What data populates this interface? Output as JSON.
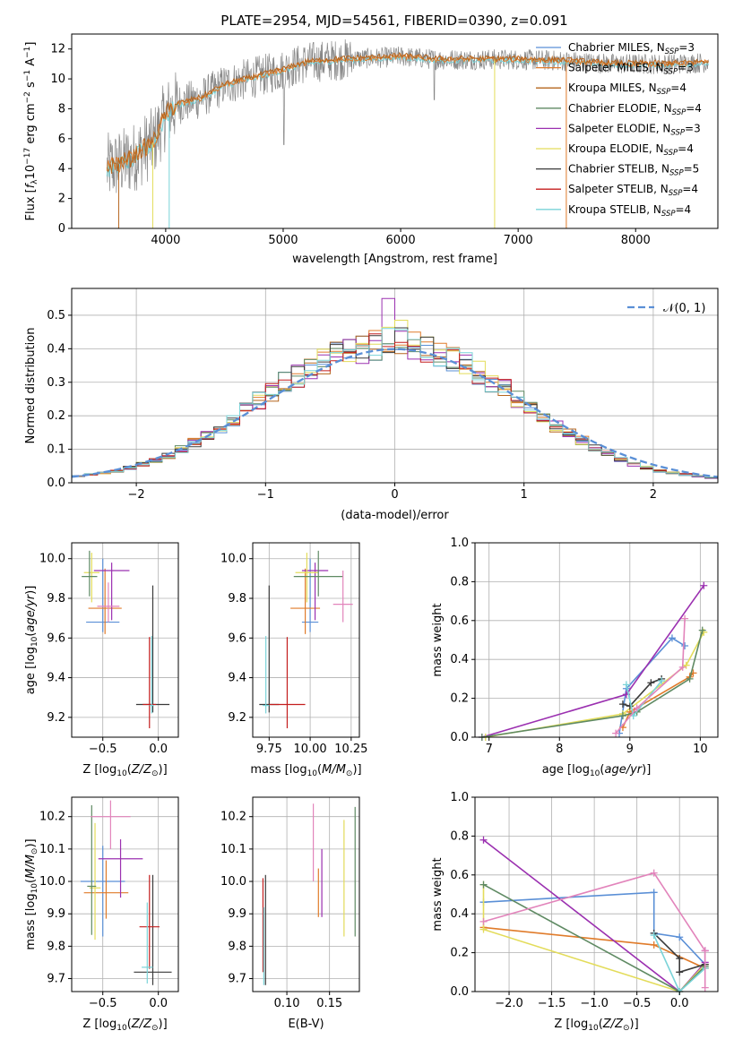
{
  "figure": {
    "title": "PLATE=2954, MJD=54561, FIBERID=0390, z=0.091"
  },
  "colors": {
    "grid": "#b0b0b0",
    "axis": "#000000",
    "model_colors": [
      "#5a8fd6",
      "#e07b2a",
      "#b5651d",
      "#5f8a63",
      "#9b30b0",
      "#e3dc5a",
      "#3a3a3a",
      "#c41e1e",
      "#7ad3d8"
    ],
    "spectrum": "#888888",
    "pink": "#e284bb",
    "lime": "#cde84a"
  },
  "chart_data": [
    {
      "id": "spectrum",
      "type": "line",
      "title": "PLATE=2954, MJD=54561, FIBERID=0390, z=0.091",
      "xlabel": "wavelength [Angstrom, rest frame]",
      "ylabel": "Flux [f_λ10^-17 erg cm^-2 s^-1 A^-1]",
      "xlim": [
        3200,
        8700
      ],
      "ylim": [
        0,
        13
      ],
      "xticks": [
        4000,
        5000,
        6000,
        7000,
        8000
      ],
      "yticks": [
        0,
        2,
        4,
        6,
        8,
        10,
        12
      ],
      "grid": false,
      "legend_position": "upper-right",
      "continuum_knots": [
        [
          3500,
          4.0
        ],
        [
          3700,
          4.6
        ],
        [
          3900,
          5.8
        ],
        [
          4000,
          7.6
        ],
        [
          4100,
          8.3
        ],
        [
          4300,
          8.7
        ],
        [
          4500,
          9.6
        ],
        [
          4800,
          10.2
        ],
        [
          5000,
          10.6
        ],
        [
          5200,
          11.1
        ],
        [
          5500,
          11.3
        ],
        [
          5800,
          11.4
        ],
        [
          6000,
          11.5
        ],
        [
          6300,
          11.3
        ],
        [
          6600,
          11.3
        ],
        [
          7000,
          11.3
        ],
        [
          7400,
          11.2
        ],
        [
          7800,
          11.0
        ],
        [
          8300,
          11.0
        ],
        [
          8600,
          11.1
        ]
      ],
      "legend": [
        {
          "label": "Chabrier MILES, N",
          "sub": "SSP",
          "n": "=3"
        },
        {
          "label": "Salpeter MILES, N",
          "sub": "SSP",
          "n": "=3"
        },
        {
          "label": "Kroupa MILES, N",
          "sub": "SSP",
          "n": "=4"
        },
        {
          "label": "Chabrier ELODIE, N",
          "sub": "SSP",
          "n": "=4"
        },
        {
          "label": "Salpeter ELODIE, N",
          "sub": "SSP",
          "n": "=3"
        },
        {
          "label": "Kroupa ELODIE, N",
          "sub": "SSP",
          "n": "=4"
        },
        {
          "label": "Chabrier STELIB, N",
          "sub": "SSP",
          "n": "=5"
        },
        {
          "label": "Salpeter STELIB, N",
          "sub": "SSP",
          "n": "=4"
        },
        {
          "label": "Kroupa STELIB, N",
          "sub": "SSP",
          "n": "=4"
        }
      ]
    },
    {
      "id": "residual_hist",
      "type": "histogram",
      "xlabel": "(data-model)/error",
      "ylabel": "Normed distribution",
      "xlim": [
        -2.5,
        2.5
      ],
      "ylim": [
        0,
        0.58
      ],
      "xticks": [
        -2,
        -1,
        0,
        1,
        2
      ],
      "yticks": [
        0.0,
        0.1,
        0.2,
        0.3,
        0.4,
        0.5
      ],
      "grid": true,
      "legend": {
        "label": "𝒩(0, 1)",
        "position": "upper-right"
      },
      "bin_width": 0.1,
      "envelope_bins": [
        -2.45,
        -2.35,
        -2.25,
        -2.15,
        -2.05,
        -1.95,
        -1.85,
        -1.75,
        -1.65,
        -1.55,
        -1.45,
        -1.35,
        -1.25,
        -1.15,
        -1.05,
        -0.95,
        -0.85,
        -0.75,
        -0.65,
        -0.55,
        -0.45,
        -0.35,
        -0.25,
        -0.15,
        -0.05,
        0.05,
        0.15,
        0.25,
        0.35,
        0.45,
        0.55,
        0.65,
        0.75,
        0.85,
        0.95,
        1.05,
        1.15,
        1.25,
        1.35,
        1.45,
        1.55,
        1.65,
        1.75,
        1.85,
        1.95,
        2.05,
        2.15,
        2.25,
        2.35,
        2.45
      ],
      "envelope_values": [
        0.02,
        0.025,
        0.03,
        0.035,
        0.045,
        0.055,
        0.065,
        0.08,
        0.1,
        0.12,
        0.14,
        0.165,
        0.19,
        0.22,
        0.245,
        0.27,
        0.3,
        0.32,
        0.345,
        0.36,
        0.38,
        0.39,
        0.4,
        0.41,
        0.42,
        0.42,
        0.41,
        0.4,
        0.385,
        0.37,
        0.35,
        0.33,
        0.3,
        0.28,
        0.25,
        0.22,
        0.2,
        0.17,
        0.15,
        0.125,
        0.105,
        0.085,
        0.07,
        0.055,
        0.045,
        0.035,
        0.03,
        0.025,
        0.02,
        0.015
      ],
      "peak_values": {
        "Salpeter ELODIE": 0.55,
        "Kroupa ELODIE": 0.485
      }
    },
    {
      "id": "age_vs_Z",
      "type": "errorbar",
      "xlabel": "Z [log10(Z/Z⊙)]",
      "ylabel": "age  [log10(age/yr)]",
      "xlim": [
        -0.78,
        0.18
      ],
      "ylim": [
        9.1,
        10.08
      ],
      "xticks": [
        -0.5,
        0.0
      ],
      "yticks": [
        9.2,
        9.4,
        9.6,
        9.8,
        10.0
      ],
      "grid": true,
      "points": [
        {
          "series": 0,
          "x": -0.5,
          "y": 9.68,
          "xerr": 0.15,
          "yerr": [
            0.05,
            0.32
          ]
        },
        {
          "series": 1,
          "x": -0.48,
          "y": 9.75,
          "xerr": 0.15,
          "yerr": [
            0.13,
            0.2
          ]
        },
        {
          "series": 4,
          "x": -0.42,
          "y": 9.94,
          "xerr": 0.16,
          "yerr": [
            0.25,
            0.04
          ]
        },
        {
          "series": 5,
          "x": -0.6,
          "y": 9.93,
          "xerr": 0.07,
          "yerr": [
            0.15,
            0.1
          ]
        },
        {
          "series": 3,
          "x": -0.62,
          "y": 9.91,
          "xerr": 0.07,
          "yerr": [
            0.1,
            0.13
          ]
        },
        {
          "series": "pink",
          "x": -0.45,
          "y": 9.76,
          "xerr": 0.1,
          "yerr": [
            0.08,
            0.12
          ]
        },
        {
          "series": 6,
          "x": -0.05,
          "y": 9.265,
          "xerr": 0.15,
          "yerr": [
            0.04,
            0.6
          ]
        },
        {
          "series": 7,
          "x": -0.08,
          "y": 9.265,
          "xerr": 0.06,
          "yerr": [
            0.12,
            0.34
          ]
        },
        {
          "series": 8,
          "x": -0.06,
          "y": 9.26,
          "xerr": 0.02,
          "yerr": [
            0.04,
            0.35
          ]
        }
      ]
    },
    {
      "id": "age_vs_mass",
      "type": "errorbar",
      "xlabel": "mass [log10(M/M⊙)]",
      "ylabel": "",
      "xlim": [
        9.65,
        10.3
      ],
      "ylim": [
        9.1,
        10.08
      ],
      "xticks": [
        9.75,
        10.0,
        10.25
      ],
      "yticks": [
        9.2,
        9.4,
        9.6,
        9.8,
        10.0
      ],
      "grid": true,
      "points": [
        {
          "series": 0,
          "x": 10.0,
          "y": 9.68,
          "xerr": 0.05,
          "yerr": [
            0.05,
            0.32
          ]
        },
        {
          "series": 1,
          "x": 9.97,
          "y": 9.75,
          "xerr": 0.09,
          "yerr": [
            0.13,
            0.2
          ]
        },
        {
          "series": 4,
          "x": 10.03,
          "y": 9.94,
          "xerr": 0.08,
          "yerr": [
            0.25,
            0.04
          ]
        },
        {
          "series": 5,
          "x": 9.98,
          "y": 9.93,
          "xerr": 0.07,
          "yerr": [
            0.15,
            0.1
          ]
        },
        {
          "series": 3,
          "x": 10.05,
          "y": 9.91,
          "xerr": 0.15,
          "yerr": [
            0.1,
            0.13
          ]
        },
        {
          "series": "pink",
          "x": 10.2,
          "y": 9.77,
          "xerr": 0.06,
          "yerr": [
            0.09,
            0.17
          ]
        },
        {
          "series": 6,
          "x": 9.75,
          "y": 9.265,
          "xerr": 0.06,
          "yerr": [
            0.04,
            0.6
          ]
        },
        {
          "series": 7,
          "x": 9.86,
          "y": 9.265,
          "xerr": 0.11,
          "yerr": [
            0.12,
            0.34
          ]
        },
        {
          "series": 8,
          "x": 9.73,
          "y": 9.26,
          "xerr": 0.02,
          "yerr": [
            0.04,
            0.35
          ]
        }
      ]
    },
    {
      "id": "massweight_vs_age",
      "type": "line",
      "xlabel": "age  [log10(age/yr)]",
      "ylabel": "mass weight",
      "xlim": [
        6.8,
        10.25
      ],
      "ylim": [
        0,
        1.0
      ],
      "xticks": [
        7,
        8,
        9,
        10
      ],
      "yticks": [
        0.0,
        0.2,
        0.4,
        0.6,
        0.8,
        1.0
      ],
      "grid": true,
      "series": [
        {
          "color": 0,
          "x": [
            8.85,
            8.95,
            9.6,
            9.78
          ],
          "y": [
            0.02,
            0.25,
            0.51,
            0.47
          ]
        },
        {
          "color": 1,
          "x": [
            8.9,
            9.0,
            9.85,
            9.9
          ],
          "y": [
            0.05,
            0.13,
            0.31,
            0.33
          ]
        },
        {
          "color": 4,
          "x": [
            6.9,
            8.95,
            10.05
          ],
          "y": [
            0.0,
            0.22,
            0.78
          ]
        },
        {
          "color": 5,
          "x": [
            6.95,
            8.9,
            9.8,
            10.05
          ],
          "y": [
            0.0,
            0.12,
            0.37,
            0.54
          ]
        },
        {
          "color": 3,
          "x": [
            6.9,
            8.9,
            9.1,
            9.85,
            10.03
          ],
          "y": [
            0.0,
            0.11,
            0.13,
            0.3,
            0.55
          ]
        },
        {
          "color": 6,
          "x": [
            8.9,
            9.0,
            9.3,
            9.45
          ],
          "y": [
            0.17,
            0.16,
            0.28,
            0.3
          ]
        },
        {
          "color": 8,
          "x": [
            8.95,
            9.05,
            9.45
          ],
          "y": [
            0.27,
            0.11,
            0.29
          ]
        },
        {
          "color": "pink",
          "x": [
            8.8,
            9.1,
            9.75,
            9.78
          ],
          "y": [
            0.02,
            0.15,
            0.36,
            0.61
          ]
        }
      ]
    },
    {
      "id": "mass_vs_Z",
      "type": "errorbar",
      "xlabel": "Z [log10(Z/Z⊙)]",
      "ylabel": "mass [log10(M/M⊙)]",
      "xlim": [
        -0.78,
        0.18
      ],
      "ylim": [
        9.66,
        10.26
      ],
      "xticks": [
        -0.5,
        0.0
      ],
      "yticks": [
        9.7,
        9.8,
        9.9,
        10.0,
        10.1,
        10.2
      ],
      "grid": true,
      "points": [
        {
          "series": 0,
          "x": -0.5,
          "y": 10.0,
          "xerr": 0.2,
          "yerr": [
            0.17,
            0.11
          ]
        },
        {
          "series": 1,
          "x": -0.47,
          "y": 9.965,
          "xerr": 0.2,
          "yerr": [
            0.08,
            0.1
          ]
        },
        {
          "series": 4,
          "x": -0.34,
          "y": 10.07,
          "xerr": 0.2,
          "yerr": [
            0.12,
            0.06
          ]
        },
        {
          "series": 5,
          "x": -0.57,
          "y": 9.98,
          "xerr": 0.05,
          "yerr": [
            0.16,
            0.2
          ]
        },
        {
          "series": 3,
          "x": -0.6,
          "y": 9.985,
          "xerr": 0.04,
          "yerr": [
            0.15,
            0.25
          ]
        },
        {
          "series": "pink",
          "x": -0.43,
          "y": 10.2,
          "xerr": 0.18,
          "yerr": [
            0.1,
            0.05
          ]
        },
        {
          "series": 6,
          "x": -0.05,
          "y": 9.72,
          "xerr": 0.17,
          "yerr": [
            0.04,
            0.3
          ]
        },
        {
          "series": 7,
          "x": -0.08,
          "y": 9.86,
          "xerr": 0.09,
          "yerr": [
            0.13,
            0.16
          ]
        },
        {
          "series": 8,
          "x": -0.1,
          "y": 9.735,
          "xerr": 0.05,
          "yerr": [
            0.05,
            0.2
          ]
        }
      ]
    },
    {
      "id": "mass_vs_EBV",
      "type": "errorbar",
      "xlabel": "E(B-V)",
      "ylabel": "",
      "xlim": [
        0.06,
        0.185
      ],
      "ylim": [
        9.66,
        10.26
      ],
      "xticks": [
        0.1,
        0.15
      ],
      "yticks": [
        9.7,
        9.8,
        9.9,
        10.0,
        10.1,
        10.2
      ],
      "grid": true,
      "points": [
        {
          "series": "pink",
          "x": 0.131,
          "y": 10.12,
          "yerr": [
            0.12,
            0.12
          ]
        },
        {
          "series": 4,
          "x": 0.141,
          "y": 10.0,
          "yerr": [
            0.11,
            0.1
          ]
        },
        {
          "series": 1,
          "x": 0.137,
          "y": 9.97,
          "yerr": [
            0.08,
            0.07
          ]
        },
        {
          "series": 5,
          "x": 0.167,
          "y": 10.01,
          "yerr": [
            0.18,
            0.18
          ]
        },
        {
          "series": 3,
          "x": 0.18,
          "y": 10.03,
          "yerr": [
            0.2,
            0.2
          ]
        },
        {
          "series": 6,
          "x": 0.075,
          "y": 9.86,
          "yerr": [
            0.18,
            0.16
          ]
        },
        {
          "series": 7,
          "x": 0.072,
          "y": 9.86,
          "yerr": [
            0.14,
            0.15
          ]
        },
        {
          "series": 8,
          "x": 0.073,
          "y": 9.8,
          "yerr": [
            0.12,
            0.12
          ]
        }
      ]
    },
    {
      "id": "massweight_vs_Z",
      "type": "line",
      "xlabel": "Z [log10(Z/Z⊙)]",
      "ylabel": "mass weight",
      "xlim": [
        -2.4,
        0.45
      ],
      "ylim": [
        0,
        1.0
      ],
      "xticks": [
        -2.0,
        -1.5,
        -1.0,
        -0.5,
        0.0
      ],
      "yticks": [
        0.0,
        0.2,
        0.4,
        0.6,
        0.8,
        1.0
      ],
      "grid": true,
      "series": [
        {
          "color": 0,
          "x": [
            -2.3,
            -0.3,
            -0.3,
            0.0,
            0.3
          ],
          "y": [
            0.46,
            0.51,
            0.3,
            0.28,
            0.14
          ]
        },
        {
          "color": 1,
          "x": [
            -2.3,
            -0.3,
            0.3
          ],
          "y": [
            0.33,
            0.24,
            0.12
          ]
        },
        {
          "color": 4,
          "x": [
            -2.3,
            0.0,
            0.3,
            0.3
          ],
          "y": [
            0.78,
            0.0,
            0.15,
            0.21
          ]
        },
        {
          "color": 5,
          "x": [
            -2.3,
            -2.3,
            0.0,
            0.3
          ],
          "y": [
            0.55,
            0.32,
            0.0,
            0.14
          ]
        },
        {
          "color": 3,
          "x": [
            -2.3,
            0.0,
            0.3
          ],
          "y": [
            0.55,
            0.0,
            0.13
          ]
        },
        {
          "color": 6,
          "x": [
            -0.3,
            0.0,
            0.0,
            0.3
          ],
          "y": [
            0.3,
            0.17,
            0.1,
            0.14
          ]
        },
        {
          "color": 8,
          "x": [
            -0.3,
            0.0,
            0.3
          ],
          "y": [
            0.29,
            0.0,
            0.12
          ]
        },
        {
          "color": "pink",
          "x": [
            -2.3,
            -0.3,
            0.3,
            0.3
          ],
          "y": [
            0.36,
            0.61,
            0.21,
            0.02
          ]
        }
      ]
    }
  ]
}
